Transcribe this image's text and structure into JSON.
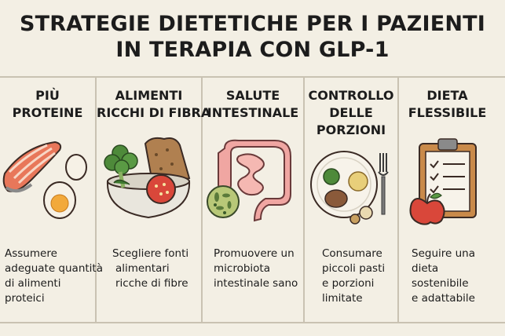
{
  "title": {
    "line1": "STRATEGIE DIETETICHE PER I PAZIENTI",
    "line2": "IN TERAPIA CON GLP-1"
  },
  "panels": [
    {
      "title": [
        "PIÙ",
        "PROTEINE"
      ],
      "desc": [
        "Assumere",
        "adeguate quantità",
        "di alimenti",
        "proteici"
      ],
      "icon": "salmon-egg-icon"
    },
    {
      "title": [
        "ALIMENTI",
        "RICCHI DI FIBRA"
      ],
      "desc": [
        "Scegliere fonti",
        "alimentari",
        "ricche di fibre"
      ],
      "icon": "fiber-bowl-icon"
    },
    {
      "title": [
        "SALUTE",
        "INTESTINALE"
      ],
      "desc": [
        "Promuovere un",
        "microbiota",
        "intestinale sano"
      ],
      "icon": "intestine-icon"
    },
    {
      "title": [
        "CONTROLLO",
        "DELLE",
        "PORZIONI"
      ],
      "desc": [
        "Consumare",
        "piccoli pasti",
        "e porzioni",
        "limitate"
      ],
      "icon": "plate-fork-icon"
    },
    {
      "title": [
        "DIETA",
        "FLESSIBILE"
      ],
      "desc": [
        "Seguire una",
        "dieta",
        "sostenibile",
        "e adattabile"
      ],
      "icon": "clipboard-apple-icon"
    }
  ]
}
